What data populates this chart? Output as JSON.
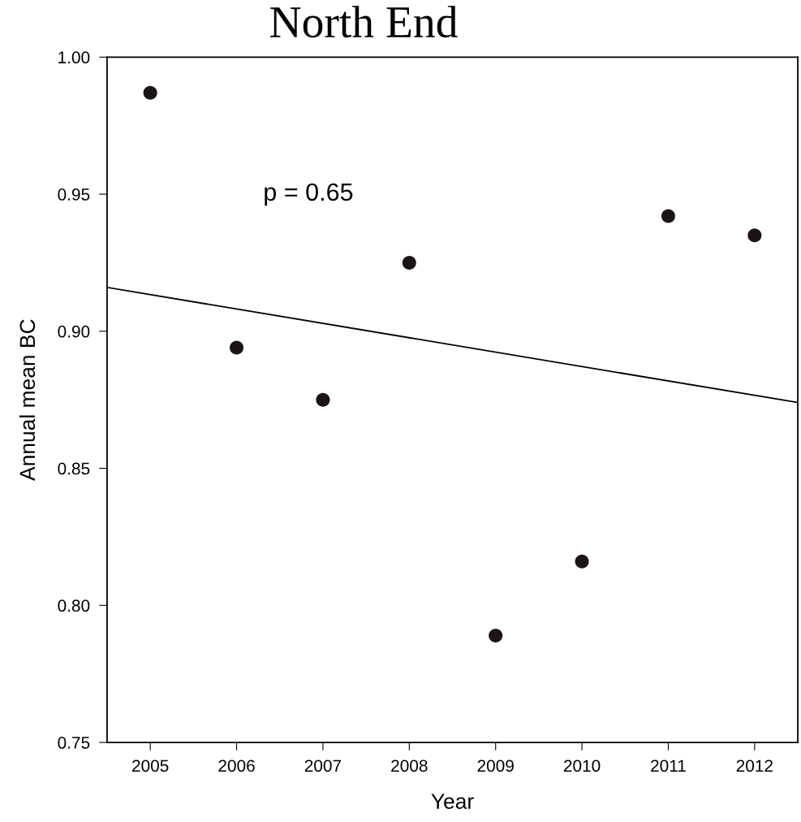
{
  "chart_data": {
    "type": "scatter",
    "title": "North End",
    "xlabel": "Year",
    "ylabel": "Annual mean BC",
    "x": [
      2005,
      2006,
      2007,
      2008,
      2009,
      2010,
      2011,
      2012
    ],
    "series": [
      {
        "color": "#1a1414",
        "marker": "circle",
        "values": [
          0.987,
          0.894,
          0.875,
          0.925,
          0.789,
          0.816,
          0.942,
          0.935
        ]
      },
      {
        "type": "line",
        "color": "#000000",
        "marker": "none",
        "line_style": "solid",
        "x": [
          2004.5,
          2012.5
        ],
        "values": [
          0.916,
          0.874
        ]
      }
    ],
    "annotations": [
      "p = 0.65"
    ],
    "xlim": [
      2004.5,
      2012.5
    ],
    "xticks": [
      2005,
      2006,
      2007,
      2008,
      2009,
      2010,
      2011,
      2012
    ],
    "ylim": [
      0.75,
      1.0
    ],
    "yticks": [
      {
        "value": 0.75,
        "label": "0.75"
      },
      {
        "value": 0.8,
        "label": "0.80"
      },
      {
        "value": 0.85,
        "label": "0.85"
      },
      {
        "value": 0.9,
        "label": "0.90"
      },
      {
        "value": 0.95,
        "label": "0.95"
      },
      {
        "value": 1.0,
        "label": "1.00"
      }
    ],
    "grid": false,
    "legend": false
  }
}
